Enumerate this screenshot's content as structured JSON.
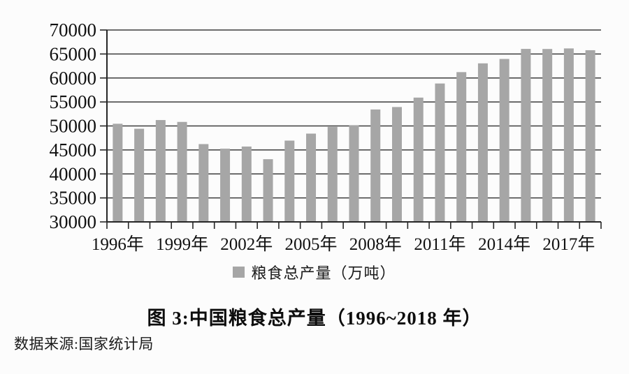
{
  "figure": {
    "title": "图 3:中国粮食总产量（1996~2018 年）",
    "source_note": "数据来源:国家统计局",
    "legend_label": "粮食总产量（万吨）"
  },
  "chart_data": {
    "type": "bar",
    "title": "图 3:中国粮食总产量（1996~2018 年）",
    "series_name": "粮食总产量（万吨）",
    "categories": [
      "1996",
      "1997",
      "1998",
      "1999",
      "2000",
      "2001",
      "2002",
      "2003",
      "2004",
      "2005",
      "2006",
      "2007",
      "2008",
      "2009",
      "2010",
      "2011",
      "2012",
      "2013",
      "2014",
      "2015",
      "2016",
      "2017",
      "2018"
    ],
    "values": [
      50453.5,
      49417.1,
      51229.5,
      50838.6,
      46217.5,
      45263.7,
      45705.8,
      43069.5,
      46946.9,
      48402.2,
      49804.2,
      50160.3,
      53434.3,
      53940.9,
      55911.3,
      58849.3,
      61222.6,
      63048.2,
      63964.8,
      66060.3,
      66043.5,
      66160.7,
      65789.2
    ],
    "xlabel": "",
    "ylabel": "",
    "ylim": [
      30000,
      70000
    ],
    "ytick_step": 5000,
    "ytick_labels": [
      "30000",
      "35000",
      "40000",
      "45000",
      "50000",
      "55000",
      "60000",
      "65000",
      "70000"
    ],
    "x_tick_labels": [
      "1996年",
      "1999年",
      "2002年",
      "2005年",
      "2008年",
      "2011年",
      "2014年",
      "2017年"
    ],
    "x_tick_interval": 3,
    "grid": true,
    "legend_position": "bottom",
    "bar_color": "#a6a6a6",
    "grid_color": "#3d3d3d",
    "axis_color": "#262626",
    "text_color": "#111111",
    "source": "数据来源:国家统计局"
  }
}
